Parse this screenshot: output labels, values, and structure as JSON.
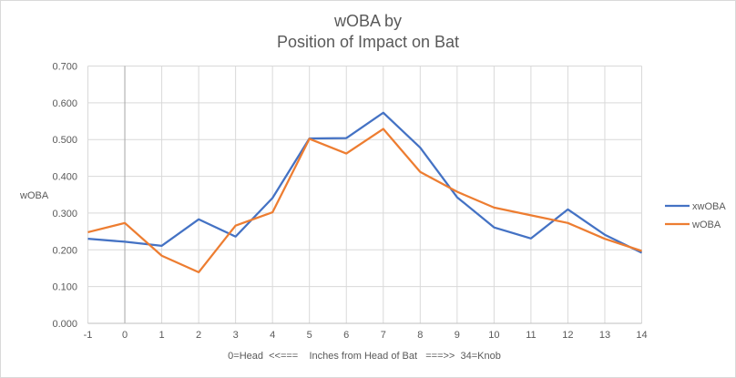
{
  "chart_data": {
    "type": "line",
    "title": [
      "wOBA by",
      "Position of Impact on Bat"
    ],
    "xlabel": "0=Head  <<===    Inches from Head of Bat   ===>>  34=Knob",
    "ylabel": "wOBA",
    "x": [
      -1,
      0,
      1,
      2,
      3,
      4,
      5,
      6,
      7,
      8,
      9,
      10,
      11,
      12,
      13,
      14
    ],
    "ylim": [
      0,
      0.7
    ],
    "yticks": [
      "0.000",
      "0.100",
      "0.200",
      "0.300",
      "0.400",
      "0.500",
      "0.600",
      "0.700"
    ],
    "grid": true,
    "legend_position": "right",
    "series": [
      {
        "name": "xwOBA",
        "color": "#4472c4",
        "values": [
          0.23,
          0.222,
          0.211,
          0.283,
          0.236,
          0.341,
          0.503,
          0.504,
          0.573,
          0.478,
          0.343,
          0.261,
          0.231,
          0.31,
          0.241,
          0.192
        ]
      },
      {
        "name": "wOBA",
        "color": "#ed7d31",
        "values": [
          0.248,
          0.273,
          0.184,
          0.139,
          0.266,
          0.302,
          0.502,
          0.462,
          0.529,
          0.412,
          0.358,
          0.315,
          0.294,
          0.273,
          0.23,
          0.197
        ]
      }
    ]
  }
}
